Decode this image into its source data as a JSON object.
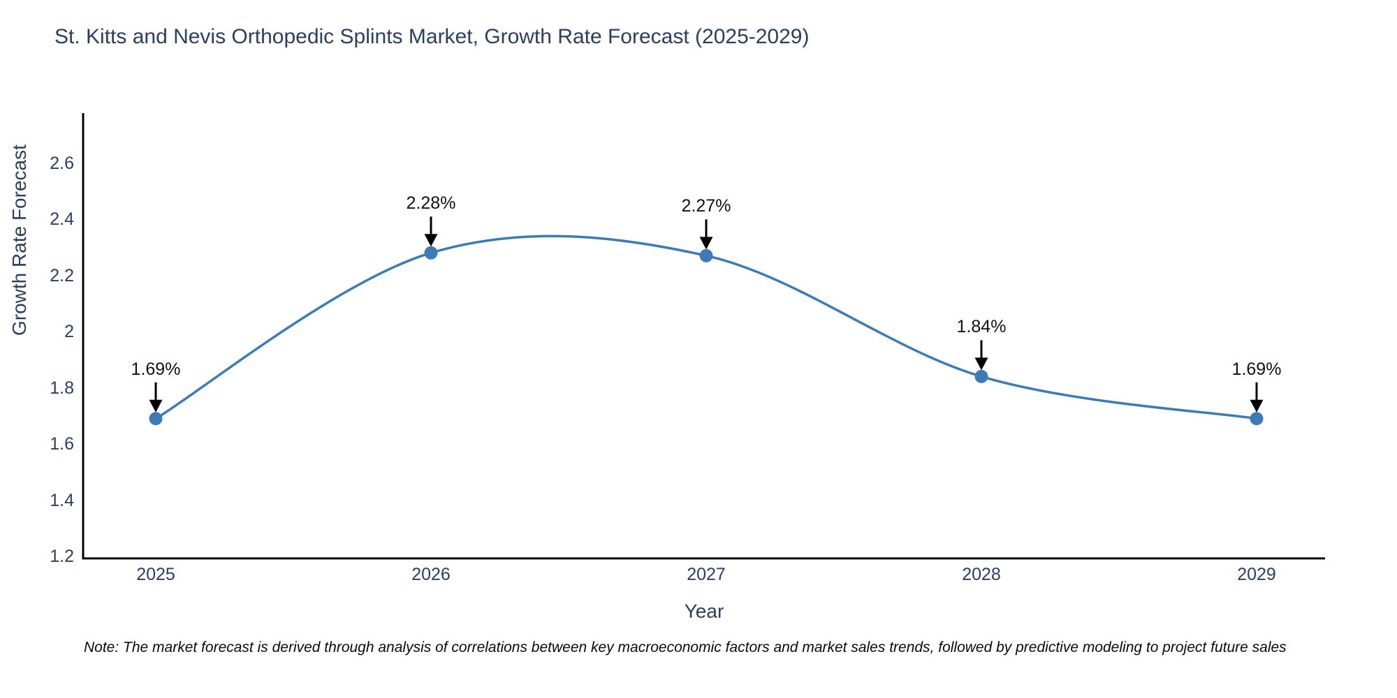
{
  "chart_data": {
    "type": "line",
    "line_shape": "spline",
    "title": "St. Kitts and Nevis Orthopedic Splints Market, Growth Rate Forecast (2025-2029)",
    "xlabel": "Year",
    "ylabel": "Growth Rate Forecast",
    "x": [
      2025,
      2026,
      2027,
      2028,
      2029
    ],
    "y": [
      1.69,
      2.28,
      2.27,
      1.84,
      1.69
    ],
    "point_labels": [
      "1.69%",
      "2.28%",
      "2.27%",
      "1.84%",
      "1.69%"
    ],
    "x_tick_labels": [
      "2025",
      "2026",
      "2027",
      "2028",
      "2029"
    ],
    "y_ticks": [
      1.2,
      1.4,
      1.6,
      1.8,
      2.0,
      2.2,
      2.4,
      2.6
    ],
    "y_tick_labels": [
      "1.2",
      "1.4",
      "1.6",
      "1.8",
      "2",
      "2.2",
      "2.4",
      "2.6"
    ],
    "ylim": [
      1.19,
      2.78
    ],
    "grid": false,
    "legend": false,
    "markers": true,
    "colors": {
      "line": "#3d7bb6",
      "marker": "#3d7bb6",
      "axis_line": "#000000",
      "tick_font": "#2a3f5f",
      "title_font": "#2a3f5f",
      "annotation_font": "#121212",
      "annotation_arrow": "#000000",
      "background": "#ffffff"
    }
  },
  "footnote": {
    "text": "Note: The market forecast is derived through analysis of correlations between key macroeconomic factors and market sales trends, followed by predictive modeling to project future sales"
  }
}
